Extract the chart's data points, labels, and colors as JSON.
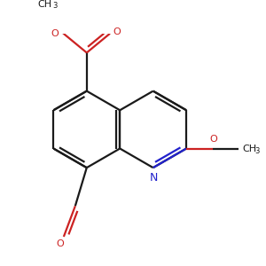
{
  "background_color": "#ffffff",
  "bond_color": "#1a1a1a",
  "n_color": "#2222cc",
  "o_color": "#cc2222",
  "line_width": 1.6,
  "figsize": [
    3.0,
    3.0
  ],
  "dpi": 100,
  "xlim": [
    -2.8,
    3.2
  ],
  "ylim": [
    -3.2,
    2.8
  ]
}
